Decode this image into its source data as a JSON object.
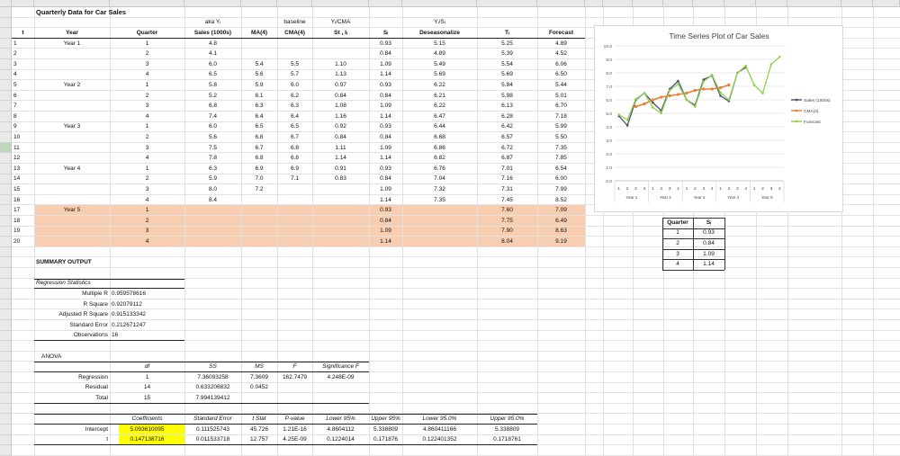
{
  "col_headers": [
    "A",
    "B",
    "C",
    "D",
    "E",
    "F",
    "G",
    "H",
    "I",
    "J",
    "K",
    "L",
    "M",
    "N",
    "O",
    "P",
    "Q",
    "R",
    "S",
    "T",
    "U"
  ],
  "row_numbers": [
    "1",
    "2",
    "3",
    "4",
    "5",
    "6",
    "7",
    "8",
    "9",
    "10",
    "11",
    "12",
    "13",
    "14",
    "15",
    "16",
    "17",
    "18",
    "19",
    "20",
    "21",
    "22",
    "23",
    "24",
    "25",
    "26",
    "27",
    "28",
    "29",
    "30",
    "31",
    "32",
    "33",
    "34",
    "35",
    "36",
    "37",
    "38",
    "39",
    "40",
    "41",
    "42",
    "43"
  ],
  "selected_row": "14",
  "sheet_title": "Quarterly Data for Car Sales",
  "header_top": {
    "aka": "aka Yᵢ",
    "baseline": "baseline",
    "ycma": "Yᵢ/CMA",
    "ysi": "Yᵢ/Sᵢ"
  },
  "headers": {
    "t": "t",
    "year": "Year",
    "quarter": "Quarter",
    "sales": "Sales (1000s)",
    "ma": "MA(4)",
    "cma": "CMA(4)",
    "stit": "St , Iᵢ",
    "si": "Sᵢ",
    "deseason": "Deseasonalize",
    "ti": "Tᵢ",
    "forecast": "Forecast"
  },
  "rows": [
    {
      "t": "1",
      "year": "Year 1",
      "q": "1",
      "sales": "4.8",
      "ma": "",
      "cma": "",
      "stit": "",
      "si": "0.93",
      "des": "5.15",
      "ti": "5.25",
      "fc": "4.89"
    },
    {
      "t": "2",
      "year": "",
      "q": "2",
      "sales": "4.1",
      "ma": "",
      "cma": "",
      "stit": "",
      "si": "0.84",
      "des": "4.89",
      "ti": "5.39",
      "fc": "4.52"
    },
    {
      "t": "3",
      "year": "",
      "q": "3",
      "sales": "6.0",
      "ma": "5.4",
      "cma": "5.5",
      "stit": "1.10",
      "si": "1.09",
      "des": "5.49",
      "ti": "5.54",
      "fc": "6.06"
    },
    {
      "t": "4",
      "year": "",
      "q": "4",
      "sales": "6.5",
      "ma": "5.6",
      "cma": "5.7",
      "stit": "1.13",
      "si": "1.14",
      "des": "5.69",
      "ti": "5.69",
      "fc": "6.50"
    },
    {
      "t": "5",
      "year": "Year 2",
      "q": "1",
      "sales": "5.8",
      "ma": "5.9",
      "cma": "6.0",
      "stit": "0.97",
      "si": "0.93",
      "des": "6.22",
      "ti": "5.84",
      "fc": "5.44"
    },
    {
      "t": "6",
      "year": "",
      "q": "2",
      "sales": "5.2",
      "ma": "6.1",
      "cma": "6.2",
      "stit": "0.84",
      "si": "0.84",
      "des": "6.21",
      "ti": "5.98",
      "fc": "5.01"
    },
    {
      "t": "7",
      "year": "",
      "q": "3",
      "sales": "6.8",
      "ma": "6.3",
      "cma": "6.3",
      "stit": "1.08",
      "si": "1.09",
      "des": "6.22",
      "ti": "6.13",
      "fc": "6.70"
    },
    {
      "t": "8",
      "year": "",
      "q": "4",
      "sales": "7.4",
      "ma": "6.4",
      "cma": "6.4",
      "stit": "1.16",
      "si": "1.14",
      "des": "6.47",
      "ti": "6.28",
      "fc": "7.18"
    },
    {
      "t": "9",
      "year": "Year 3",
      "q": "1",
      "sales": "6.0",
      "ma": "6.5",
      "cma": "6.5",
      "stit": "0.92",
      "si": "0.93",
      "des": "6.44",
      "ti": "6.42",
      "fc": "5.99"
    },
    {
      "t": "10",
      "year": "",
      "q": "2",
      "sales": "5.6",
      "ma": "6.6",
      "cma": "6.7",
      "stit": "0.84",
      "si": "0.84",
      "des": "6.68",
      "ti": "6.57",
      "fc": "5.50"
    },
    {
      "t": "11",
      "year": "",
      "q": "3",
      "sales": "7.5",
      "ma": "6.7",
      "cma": "6.8",
      "stit": "1.11",
      "si": "1.09",
      "des": "6.86",
      "ti": "6.72",
      "fc": "7.35"
    },
    {
      "t": "12",
      "year": "",
      "q": "4",
      "sales": "7.8",
      "ma": "6.8",
      "cma": "6.8",
      "stit": "1.14",
      "si": "1.14",
      "des": "6.82",
      "ti": "6.87",
      "fc": "7.85"
    },
    {
      "t": "13",
      "year": "Year 4",
      "q": "1",
      "sales": "6.3",
      "ma": "6.9",
      "cma": "6.9",
      "stit": "0.91",
      "si": "0.93",
      "des": "6.76",
      "ti": "7.01",
      "fc": "6.54"
    },
    {
      "t": "14",
      "year": "",
      "q": "2",
      "sales": "5.9",
      "ma": "7.0",
      "cma": "7.1",
      "stit": "0.83",
      "si": "0.84",
      "des": "7.04",
      "ti": "7.16",
      "fc": "6.00"
    },
    {
      "t": "15",
      "year": "",
      "q": "3",
      "sales": "8.0",
      "ma": "7.2",
      "cma": "",
      "stit": "",
      "si": "1.09",
      "des": "7.32",
      "ti": "7.31",
      "fc": "7.99"
    },
    {
      "t": "16",
      "year": "",
      "q": "4",
      "sales": "8.4",
      "ma": "",
      "cma": "",
      "stit": "",
      "si": "1.14",
      "des": "7.35",
      "ti": "7.45",
      "fc": "8.52"
    },
    {
      "t": "17",
      "year": "Year 5",
      "q": "1",
      "sales": "",
      "ma": "",
      "cma": "",
      "stit": "",
      "si": "0.93",
      "des": "",
      "ti": "7.60",
      "fc": "7.09"
    },
    {
      "t": "18",
      "year": "",
      "q": "2",
      "sales": "",
      "ma": "",
      "cma": "",
      "stit": "",
      "si": "0.84",
      "des": "",
      "ti": "7.75",
      "fc": "6.49"
    },
    {
      "t": "19",
      "year": "",
      "q": "3",
      "sales": "",
      "ma": "",
      "cma": "",
      "stit": "",
      "si": "1.09",
      "des": "",
      "ti": "7.90",
      "fc": "8.63"
    },
    {
      "t": "20",
      "year": "",
      "q": "4",
      "sales": "",
      "ma": "",
      "cma": "",
      "stit": "",
      "si": "1.14",
      "des": "",
      "ti": "8.04",
      "fc": "9.19"
    }
  ],
  "season_table": {
    "headers": [
      "Quarter",
      "Sᵢ"
    ],
    "rows": [
      [
        "1",
        "0.93"
      ],
      [
        "2",
        "0.84"
      ],
      [
        "3",
        "1.09"
      ],
      [
        "4",
        "1.14"
      ]
    ]
  },
  "summary": {
    "title": "SUMMARY OUTPUT",
    "reg_stats_title": "Regression Statistics",
    "reg_stats": [
      [
        "Multiple R",
        "0.959578616"
      ],
      [
        "R Square",
        "0.92079112"
      ],
      [
        "Adjusted R Square",
        "0.915133342"
      ],
      [
        "Standard Error",
        "0.212671247"
      ],
      [
        "Observations",
        "16"
      ]
    ],
    "anova_title": "ANOVA",
    "anova_headers": [
      "",
      "df",
      "SS",
      "MS",
      "F",
      "Significance F"
    ],
    "anova_rows": [
      [
        "Regression",
        "1",
        "7.36093258",
        "7.3609",
        "162.7479",
        "4.248E-09"
      ],
      [
        "Residual",
        "14",
        "0.633206832",
        "0.0452",
        "",
        ""
      ],
      [
        "Total",
        "15",
        "7.994139412",
        "",
        "",
        ""
      ]
    ],
    "coef_headers": [
      "",
      "Coefficients",
      "Standard Error",
      "t Stat",
      "P-value",
      "Lower 95%",
      "Upper 95%",
      "Lower 95.0%",
      "Upper 95.0%"
    ],
    "coef_rows": [
      [
        "Intercept",
        "5.093610095",
        "0.111525743",
        "45.726",
        "1.21E-16",
        "4.8604112",
        "5.338809",
        "4.860411166",
        "5.338809"
      ],
      [
        "t",
        "0.147138716",
        "0.011533718",
        "12.757",
        "4.25E-09",
        "0.1224014",
        "0.171876",
        "0.122401352",
        "0.1718761"
      ]
    ]
  },
  "chart_data": {
    "type": "line",
    "title": "Time Series Plot of Car Sales",
    "y_ticks": [
      "10.0",
      "9.0",
      "8.0",
      "7.0",
      "6.0",
      "5.0",
      "4.0",
      "3.0",
      "2.0",
      "1.0",
      "0.0"
    ],
    "ylim": [
      0,
      10
    ],
    "x_categories": [
      "1",
      "2",
      "3",
      "4",
      "1",
      "2",
      "3",
      "4",
      "1",
      "2",
      "3",
      "4",
      "1",
      "2",
      "3",
      "4",
      "1",
      "2",
      "3",
      "4"
    ],
    "x_groups": [
      "Year 1",
      "Year 2",
      "Year 3",
      "Year 4",
      "Year 5"
    ],
    "series": [
      {
        "name": "Sales (1000s)",
        "color": "#44546a",
        "values": [
          4.8,
          4.1,
          6.0,
          6.5,
          5.8,
          5.2,
          6.8,
          7.4,
          6.0,
          5.6,
          7.5,
          7.8,
          6.3,
          5.9,
          8.0,
          8.4,
          null,
          null,
          null,
          null
        ]
      },
      {
        "name": "CMA(4)",
        "color": "#ed7d31",
        "values": [
          null,
          null,
          5.5,
          5.7,
          6.0,
          6.2,
          6.3,
          6.4,
          6.5,
          6.7,
          6.8,
          6.8,
          6.9,
          7.1,
          null,
          null,
          null,
          null,
          null,
          null
        ]
      },
      {
        "name": "Forecast",
        "color": "#8fd14f",
        "values": [
          4.89,
          4.52,
          6.06,
          6.5,
          5.44,
          5.01,
          6.7,
          7.18,
          5.99,
          5.5,
          7.35,
          7.85,
          6.54,
          6.0,
          7.99,
          8.52,
          7.09,
          6.49,
          8.63,
          9.19
        ]
      }
    ],
    "legend_position": "right",
    "grid": true
  }
}
